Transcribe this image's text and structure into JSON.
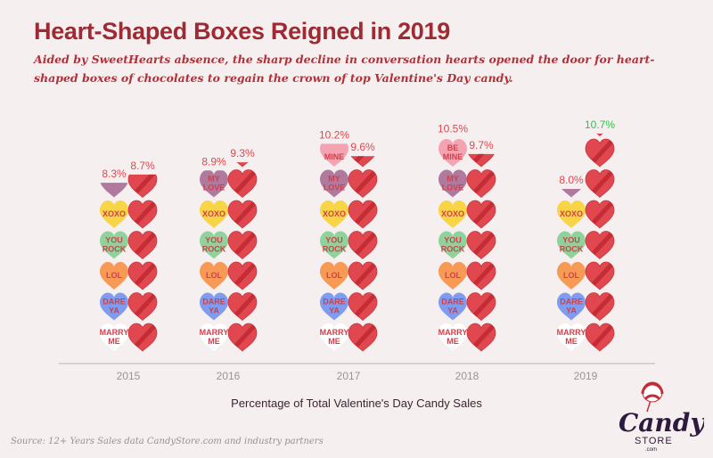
{
  "title": "Heart-Shaped Boxes Reigned in 2019",
  "subtitle": "Aided by SweetHearts absence, the sharp decline in conversation hearts opened the door for heart-shaped boxes of chocolates to regain the crown of top Valentine's Day candy.",
  "caption": "Percentage of Total Valentine's Day Candy Sales",
  "source": "Source: 12+ Years Sales data CandyStore.com and industry partners",
  "logo": {
    "name": "Candy",
    "sub": "STORE",
    "domain": ".com"
  },
  "colors": {
    "accent": "#9e2b33",
    "box_heart": "#e0474f",
    "box_stripe": "#c42d36",
    "label": "#e0474f",
    "highlight_label": "#2fbf4f",
    "axis": "#cfc8ca"
  },
  "conversation_heart_texts": [
    "MARRY ME",
    "DARE YA",
    "LOL",
    "YOU ROCK",
    "XOXO",
    "MY LOVE",
    "BE MINE",
    ""
  ],
  "conversation_heart_colors": [
    "#ffffff",
    "#7f9cf0",
    "#f79a55",
    "#8fd39c",
    "#f8d447",
    "#b07a9f",
    "#f4a3b3",
    "#7f9cf0"
  ],
  "chart_data": {
    "type": "bar",
    "xlabel": "Percentage of Total Valentine's Day Candy Sales",
    "categories": [
      "2015",
      "2016",
      "2017",
      "2018",
      "2019"
    ],
    "series": [
      {
        "kind": "conversation hearts",
        "values": [
          8.3,
          8.9,
          10.2,
          10.5,
          8.0
        ],
        "labels": [
          "8.3%",
          "8.9%",
          "10.2%",
          "10.5%",
          "8.0%"
        ]
      },
      {
        "kind": "heart-shaped boxes",
        "values": [
          8.7,
          9.3,
          9.6,
          9.7,
          10.7
        ],
        "labels": [
          "8.7%",
          "9.3%",
          "9.6%",
          "9.7%",
          "10.7%"
        ]
      }
    ]
  }
}
